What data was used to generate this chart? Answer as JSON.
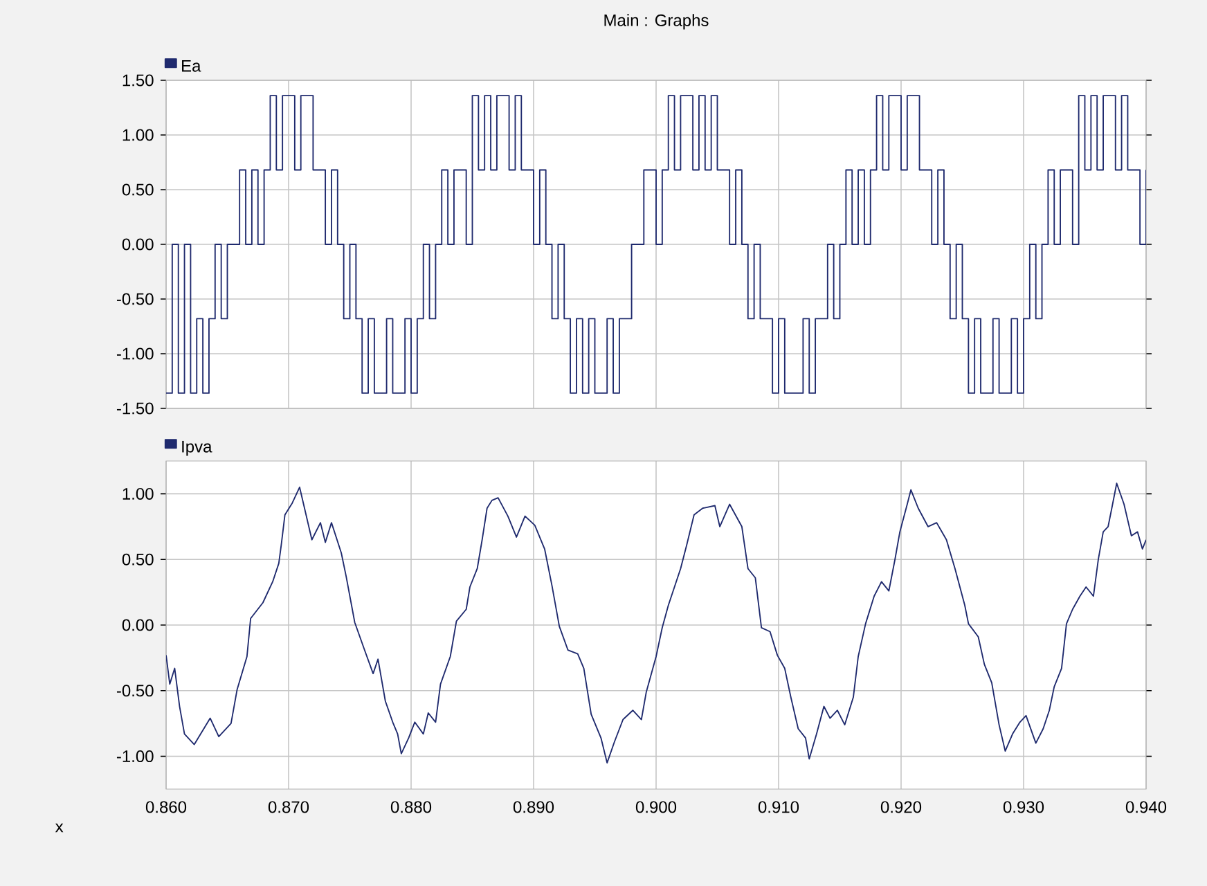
{
  "chart_data": [
    {
      "type": "step",
      "title": "Main : Graphs",
      "xlim": [
        0.86,
        0.94
      ],
      "ylim": [
        -1.5,
        1.5
      ],
      "grid": true,
      "legend": "top left",
      "tick_labels": "y",
      "xticks": [
        {
          "value": 0.86,
          "label": null
        },
        {
          "value": 0.87,
          "label": null
        },
        {
          "value": 0.88,
          "label": null
        },
        {
          "value": 0.89,
          "label": null
        },
        {
          "value": 0.9,
          "label": null
        },
        {
          "value": 0.91,
          "label": null
        },
        {
          "value": 0.92,
          "label": null
        },
        {
          "value": 0.93,
          "label": null
        },
        {
          "value": 0.94,
          "label": null
        }
      ],
      "yticks": [
        {
          "value": -1.5,
          "label": "-1.50"
        },
        {
          "value": -1.0,
          "label": "-1.00"
        },
        {
          "value": -0.5,
          "label": "-0.50"
        },
        {
          "value": 0,
          "label": "0.00"
        },
        {
          "value": 0.5,
          "label": "0.50"
        },
        {
          "value": 1.0,
          "label": "1.00"
        },
        {
          "value": 1.5,
          "label": "1.50"
        }
      ],
      "x": [
        0.86,
        0.8605,
        0.861,
        0.8615,
        0.862,
        0.8625,
        0.863,
        0.8635,
        0.864,
        0.8645,
        0.865,
        0.8655,
        0.866,
        0.8665,
        0.867,
        0.8675,
        0.868,
        0.8685,
        0.869,
        0.8695,
        0.87,
        0.8705,
        0.871,
        0.8715,
        0.872,
        0.8725,
        0.873,
        0.8735,
        0.874,
        0.8745,
        0.875,
        0.8755,
        0.876,
        0.8765,
        0.877,
        0.8775,
        0.878,
        0.8785,
        0.879,
        0.8795,
        0.88,
        0.8805,
        0.881,
        0.8815,
        0.882,
        0.8825,
        0.883,
        0.8835,
        0.884,
        0.8845,
        0.885,
        0.8855,
        0.886,
        0.8865,
        0.887,
        0.8875,
        0.888,
        0.8885,
        0.889,
        0.8895,
        0.89,
        0.8905,
        0.891,
        0.8915,
        0.892,
        0.8925,
        0.893,
        0.8935,
        0.894,
        0.8945,
        0.895,
        0.8955,
        0.896,
        0.8965,
        0.897,
        0.8975,
        0.898,
        0.8985,
        0.899,
        0.8995,
        0.9,
        0.9005,
        0.901,
        0.9015,
        0.902,
        0.9025,
        0.903,
        0.9035,
        0.904,
        0.9045,
        0.905,
        0.9055,
        0.906,
        0.9065,
        0.907,
        0.9075,
        0.908,
        0.9085,
        0.909,
        0.9095,
        0.91,
        0.9105,
        0.911,
        0.9115,
        0.912,
        0.9125,
        0.913,
        0.9135,
        0.914,
        0.9145,
        0.915,
        0.9155,
        0.916,
        0.9165,
        0.917,
        0.9175,
        0.918,
        0.9185,
        0.919,
        0.9195,
        0.92,
        0.9205,
        0.921,
        0.9215,
        0.922,
        0.9225,
        0.923,
        0.9235,
        0.924,
        0.9245,
        0.925,
        0.9255,
        0.926,
        0.9265,
        0.927,
        0.9275,
        0.928,
        0.9285,
        0.929,
        0.9295,
        0.93,
        0.9305,
        0.931,
        0.9315,
        0.932,
        0.9325,
        0.933,
        0.9335,
        0.934,
        0.9345,
        0.935,
        0.9355,
        0.936,
        0.9365,
        0.937,
        0.9375,
        0.938,
        0.9385,
        0.939,
        0.9395,
        0.94
      ],
      "series": [
        {
          "name": "Ea",
          "color": "#1f2a6e",
          "values": [
            -1.36,
            0,
            -1.36,
            0,
            -1.36,
            -0.68,
            -1.36,
            -0.68,
            0,
            -0.68,
            0,
            0,
            0.68,
            0,
            0.68,
            0,
            0.68,
            1.36,
            0.68,
            1.36,
            1.36,
            0.68,
            1.36,
            1.36,
            0.68,
            0.68,
            0,
            0.68,
            0,
            -0.68,
            0,
            -0.68,
            -1.36,
            -0.68,
            -1.36,
            -1.36,
            -0.68,
            -1.36,
            -1.36,
            -0.68,
            -1.36,
            -0.68,
            0,
            -0.68,
            0,
            0.68,
            0,
            0.68,
            0.68,
            0,
            1.36,
            0.68,
            1.36,
            0.68,
            1.36,
            1.36,
            0.68,
            1.36,
            0.68,
            0.68,
            0,
            0.68,
            0,
            -0.68,
            0,
            -0.68,
            -1.36,
            -0.68,
            -1.36,
            -0.68,
            -1.36,
            -1.36,
            -0.68,
            -1.36,
            -0.68,
            -0.68,
            0,
            0,
            0.68,
            0.68,
            0,
            0.68,
            1.36,
            0.68,
            1.36,
            1.36,
            0.68,
            1.36,
            0.68,
            1.36,
            0.68,
            0.68,
            0,
            0.68,
            0,
            -0.68,
            0,
            -0.68,
            -0.68,
            -1.36,
            -0.68,
            -1.36,
            -1.36,
            -1.36,
            -0.68,
            -1.36,
            -0.68,
            -0.68,
            0,
            -0.68,
            0,
            0.68,
            0,
            0.68,
            0,
            0.68,
            1.36,
            0.68,
            1.36,
            1.36,
            0.68,
            1.36,
            1.36,
            0.68,
            0.68,
            0,
            0.68,
            0,
            -0.68,
            0,
            -0.68,
            -1.36,
            -0.68,
            -1.36,
            -1.36,
            -0.68,
            -1.36,
            -1.36,
            -0.68,
            -1.36,
            -0.68,
            0,
            -0.68,
            0,
            0.68,
            0,
            0.68,
            0.68,
            0,
            1.36,
            0.68,
            1.36,
            0.68,
            1.36,
            1.36,
            0.68,
            1.36,
            0.68,
            0.68,
            0,
            0.68
          ]
        }
      ]
    },
    {
      "type": "line",
      "xlabel": "x",
      "xlim": [
        0.86,
        0.94
      ],
      "ylim": [
        -1.25,
        1.25
      ],
      "grid": true,
      "legend": "top left",
      "xticks": [
        {
          "value": 0.86,
          "label": "0.860"
        },
        {
          "value": 0.87,
          "label": "0.870"
        },
        {
          "value": 0.88,
          "label": "0.880"
        },
        {
          "value": 0.89,
          "label": "0.890"
        },
        {
          "value": 0.9,
          "label": "0.900"
        },
        {
          "value": 0.91,
          "label": "0.910"
        },
        {
          "value": 0.92,
          "label": "0.920"
        },
        {
          "value": 0.93,
          "label": "0.930"
        },
        {
          "value": 0.94,
          "label": "0.940"
        }
      ],
      "yticks": [
        {
          "value": -1.0,
          "label": "-1.00"
        },
        {
          "value": -0.5,
          "label": "-0.50"
        },
        {
          "value": 0,
          "label": "0.00"
        },
        {
          "value": 0.5,
          "label": "0.50"
        },
        {
          "value": 1.0,
          "label": "1.00"
        }
      ],
      "x": [
        0.86,
        0.8603,
        0.8607,
        0.8611,
        0.8615,
        0.8623,
        0.8636,
        0.8643,
        0.8653,
        0.8658,
        0.8666,
        0.8669,
        0.8679,
        0.8687,
        0.8692,
        0.8694,
        0.8697,
        0.8703,
        0.8709,
        0.8713,
        0.8719,
        0.8726,
        0.873,
        0.8735,
        0.8743,
        0.8747,
        0.8754,
        0.8762,
        0.8769,
        0.8773,
        0.8779,
        0.8785,
        0.8789,
        0.8792,
        0.8798,
        0.8803,
        0.881,
        0.8814,
        0.882,
        0.8824,
        0.8832,
        0.8837,
        0.8845,
        0.8848,
        0.8854,
        0.8858,
        0.8862,
        0.8866,
        0.8871,
        0.8879,
        0.8886,
        0.8893,
        0.8901,
        0.8909,
        0.8915,
        0.8921,
        0.8928,
        0.8936,
        0.8941,
        0.8947,
        0.8955,
        0.896,
        0.8966,
        0.8973,
        0.8981,
        0.8988,
        0.8992,
        0.9,
        0.9005,
        0.901,
        0.902,
        0.9025,
        0.9031,
        0.9038,
        0.9048,
        0.9052,
        0.906,
        0.907,
        0.9075,
        0.9081,
        0.9086,
        0.9093,
        0.9099,
        0.9105,
        0.911,
        0.9116,
        0.9122,
        0.9125,
        0.9131,
        0.9137,
        0.9142,
        0.9148,
        0.9154,
        0.9161,
        0.9165,
        0.9171,
        0.9178,
        0.9184,
        0.919,
        0.9195,
        0.9199,
        0.9205,
        0.9208,
        0.9214,
        0.9222,
        0.9229,
        0.9237,
        0.9244,
        0.9252,
        0.9255,
        0.9263,
        0.9268,
        0.9274,
        0.928,
        0.9285,
        0.9291,
        0.9297,
        0.9302,
        0.931,
        0.9316,
        0.9321,
        0.9325,
        0.9331,
        0.9335,
        0.934,
        0.9346,
        0.9351,
        0.9357,
        0.9361,
        0.9365,
        0.9369,
        0.9372,
        0.9376,
        0.9382,
        0.9388,
        0.9393,
        0.9397,
        0.94
      ],
      "series": [
        {
          "name": "Ipva",
          "color": "#1f2a6e",
          "values": [
            -0.23,
            -0.45,
            -0.33,
            -0.62,
            -0.83,
            -0.91,
            -0.71,
            -0.85,
            -0.75,
            -0.49,
            -0.24,
            0.05,
            0.17,
            0.33,
            0.47,
            0.61,
            0.84,
            0.93,
            1.05,
            0.89,
            0.65,
            0.78,
            0.63,
            0.78,
            0.55,
            0.37,
            0.02,
            -0.19,
            -0.37,
            -0.26,
            -0.58,
            -0.74,
            -0.83,
            -0.98,
            -0.86,
            -0.74,
            -0.83,
            -0.67,
            -0.74,
            -0.45,
            -0.24,
            0.03,
            0.12,
            0.29,
            0.43,
            0.65,
            0.89,
            0.95,
            0.97,
            0.83,
            0.67,
            0.83,
            0.76,
            0.58,
            0.3,
            -0.01,
            -0.19,
            -0.22,
            -0.33,
            -0.68,
            -0.86,
            -1.05,
            -0.89,
            -0.72,
            -0.65,
            -0.72,
            -0.51,
            -0.24,
            -0.02,
            0.15,
            0.43,
            0.61,
            0.84,
            0.89,
            0.91,
            0.75,
            0.92,
            0.75,
            0.43,
            0.36,
            -0.02,
            -0.05,
            -0.23,
            -0.33,
            -0.55,
            -0.79,
            -0.86,
            -1.02,
            -0.83,
            -0.62,
            -0.71,
            -0.65,
            -0.76,
            -0.55,
            -0.24,
            0.01,
            0.22,
            0.33,
            0.26,
            0.5,
            0.71,
            0.92,
            1.03,
            0.89,
            0.75,
            0.78,
            0.65,
            0.43,
            0.15,
            0.01,
            -0.09,
            -0.3,
            -0.44,
            -0.76,
            -0.96,
            -0.83,
            -0.74,
            -0.69,
            -0.9,
            -0.79,
            -0.65,
            -0.47,
            -0.33,
            0.01,
            0.12,
            0.22,
            0.29,
            0.22,
            0.5,
            0.71,
            0.75,
            0.89,
            1.08,
            0.92,
            0.68,
            0.71,
            0.58,
            0.65
          ]
        }
      ]
    }
  ]
}
